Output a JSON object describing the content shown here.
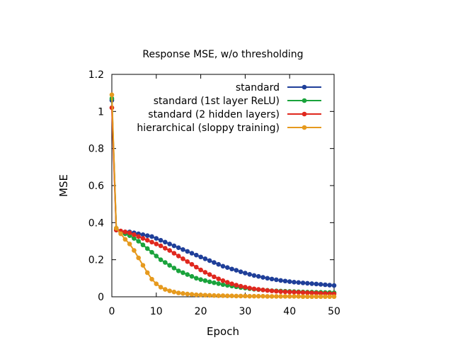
{
  "chart_data": {
    "type": "line",
    "title": "Response MSE, w/o thresholding",
    "xlabel": "Epoch",
    "ylabel": "MSE",
    "xlim": [
      0,
      50
    ],
    "ylim": [
      0,
      1.2
    ],
    "xticks": [
      "0",
      "10",
      "20",
      "30",
      "40",
      "50"
    ],
    "yticks": [
      "0",
      "0.2",
      "0.4",
      "0.6",
      "0.8",
      "1",
      "1.2"
    ],
    "legend_position": "top-right",
    "grid": false,
    "series": [
      {
        "name": "standard",
        "color": "#1f3f99",
        "x": [
          0,
          1,
          2,
          3,
          4,
          5,
          6,
          7,
          8,
          9,
          10,
          11,
          12,
          13,
          14,
          15,
          16,
          17,
          18,
          19,
          20,
          21,
          22,
          23,
          24,
          25,
          26,
          27,
          28,
          29,
          30,
          31,
          32,
          33,
          34,
          35,
          36,
          37,
          38,
          39,
          40,
          41,
          42,
          43,
          44,
          45,
          46,
          47,
          48,
          49,
          50
        ],
        "values": [
          1.06,
          0.36,
          0.35,
          0.35,
          0.35,
          0.345,
          0.34,
          0.335,
          0.33,
          0.325,
          0.315,
          0.305,
          0.295,
          0.285,
          0.275,
          0.265,
          0.255,
          0.245,
          0.235,
          0.225,
          0.215,
          0.205,
          0.195,
          0.185,
          0.175,
          0.165,
          0.158,
          0.15,
          0.143,
          0.135,
          0.128,
          0.121,
          0.115,
          0.11,
          0.105,
          0.1,
          0.096,
          0.092,
          0.088,
          0.085,
          0.082,
          0.079,
          0.077,
          0.075,
          0.073,
          0.071,
          0.069,
          0.067,
          0.065,
          0.063,
          0.061
        ]
      },
      {
        "name": "standard (1st layer ReLU)",
        "color": "#1aa33c",
        "x": [
          0,
          1,
          2,
          3,
          4,
          5,
          6,
          7,
          8,
          9,
          10,
          11,
          12,
          13,
          14,
          15,
          16,
          17,
          18,
          19,
          20,
          21,
          22,
          23,
          24,
          25,
          26,
          27,
          28,
          29,
          30,
          31,
          32,
          33,
          34,
          35,
          36,
          37,
          38,
          39,
          40,
          41,
          42,
          43,
          44,
          45,
          46,
          47,
          48,
          49,
          50
        ],
        "values": [
          1.07,
          0.37,
          0.35,
          0.34,
          0.33,
          0.315,
          0.3,
          0.28,
          0.26,
          0.24,
          0.22,
          0.2,
          0.185,
          0.17,
          0.155,
          0.14,
          0.13,
          0.12,
          0.11,
          0.1,
          0.093,
          0.087,
          0.081,
          0.076,
          0.071,
          0.066,
          0.062,
          0.058,
          0.054,
          0.05,
          0.047,
          0.044,
          0.041,
          0.039,
          0.037,
          0.035,
          0.033,
          0.032,
          0.031,
          0.03,
          0.029,
          0.028,
          0.027,
          0.026,
          0.025,
          0.025,
          0.024,
          0.024,
          0.023,
          0.023,
          0.022
        ]
      },
      {
        "name": "standard (2 hidden layers)",
        "color": "#e0281e",
        "x": [
          0,
          1,
          2,
          3,
          4,
          5,
          6,
          7,
          8,
          9,
          10,
          11,
          12,
          13,
          14,
          15,
          16,
          17,
          18,
          19,
          20,
          21,
          22,
          23,
          24,
          25,
          26,
          27,
          28,
          29,
          30,
          31,
          32,
          33,
          34,
          35,
          36,
          37,
          38,
          39,
          40,
          41,
          42,
          43,
          44,
          45,
          46,
          47,
          48,
          49,
          50
        ],
        "values": [
          1.02,
          0.36,
          0.355,
          0.35,
          0.345,
          0.335,
          0.325,
          0.315,
          0.305,
          0.295,
          0.285,
          0.275,
          0.262,
          0.25,
          0.235,
          0.22,
          0.205,
          0.19,
          0.175,
          0.16,
          0.145,
          0.132,
          0.12,
          0.108,
          0.097,
          0.087,
          0.078,
          0.07,
          0.063,
          0.057,
          0.052,
          0.047,
          0.043,
          0.04,
          0.037,
          0.034,
          0.032,
          0.03,
          0.028,
          0.027,
          0.026,
          0.025,
          0.024,
          0.023,
          0.022,
          0.021,
          0.02,
          0.019,
          0.018,
          0.017,
          0.016
        ]
      },
      {
        "name": "hierarchical (sloppy training)",
        "color": "#e69a1e",
        "x": [
          0,
          1,
          2,
          3,
          4,
          5,
          6,
          7,
          8,
          9,
          10,
          11,
          12,
          13,
          14,
          15,
          16,
          17,
          18,
          19,
          20,
          21,
          22,
          23,
          24,
          25,
          26,
          27,
          28,
          29,
          30,
          31,
          32,
          33,
          34,
          35,
          36,
          37,
          38,
          39,
          40,
          41,
          42,
          43,
          44,
          45,
          46,
          47,
          48,
          49,
          50
        ],
        "values": [
          1.09,
          0.37,
          0.34,
          0.31,
          0.285,
          0.25,
          0.21,
          0.17,
          0.13,
          0.095,
          0.07,
          0.052,
          0.04,
          0.032,
          0.026,
          0.021,
          0.018,
          0.015,
          0.013,
          0.011,
          0.01,
          0.009,
          0.008,
          0.007,
          0.006,
          0.006,
          0.005,
          0.005,
          0.004,
          0.004,
          0.004,
          0.003,
          0.003,
          0.003,
          0.003,
          0.002,
          0.002,
          0.002,
          0.002,
          0.002,
          0.002,
          0.002,
          0.002,
          0.001,
          0.001,
          0.001,
          0.001,
          0.001,
          0.001,
          0.001,
          0.001
        ]
      }
    ]
  }
}
